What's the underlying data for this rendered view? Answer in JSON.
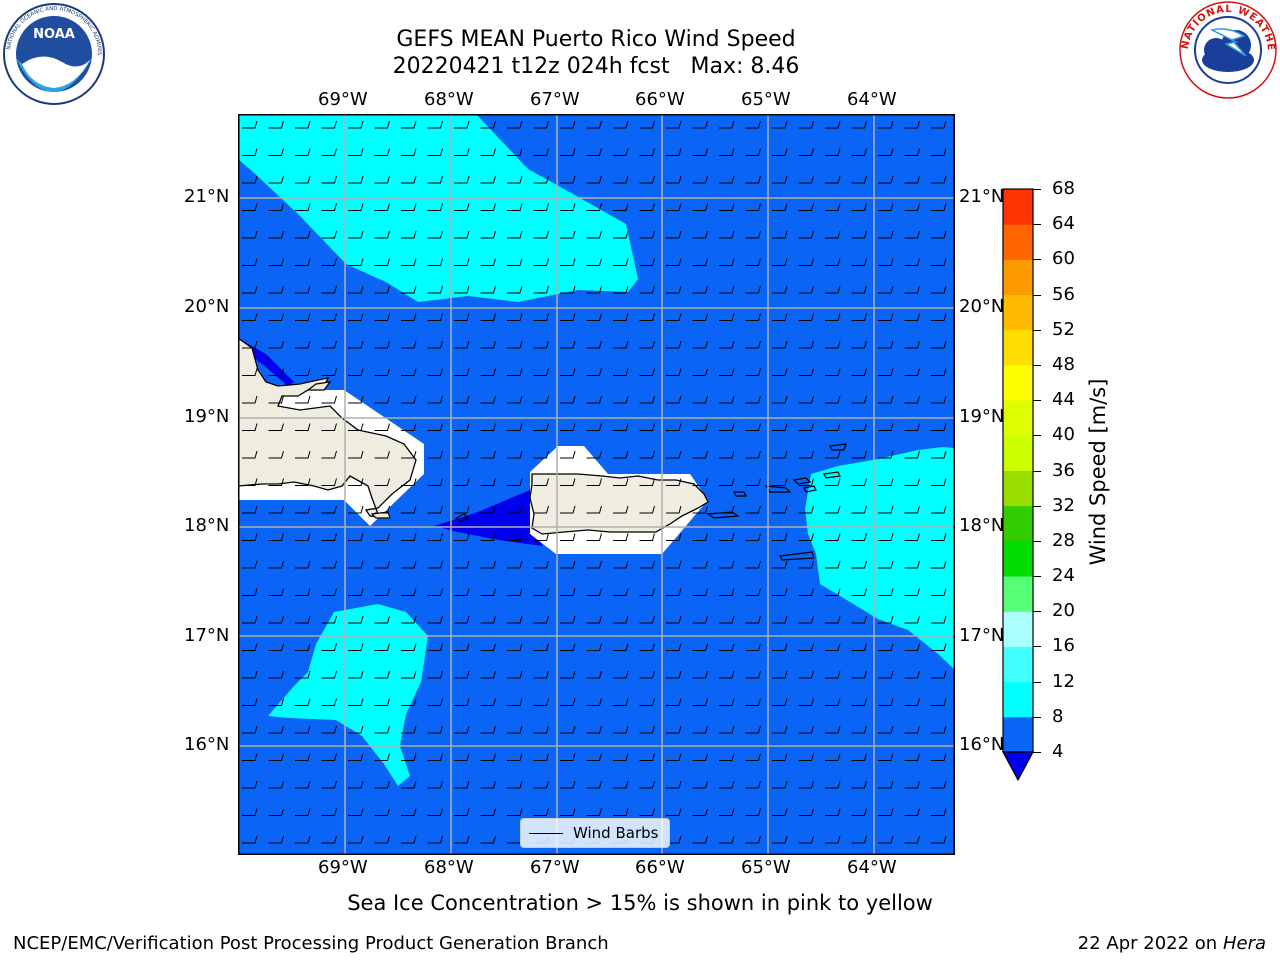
{
  "header": {
    "title_line1": "GEFS MEAN Puerto Rico Wind Speed",
    "title_line2": "20220421 t12z 024h fcst   Max: 8.46"
  },
  "logos": {
    "left": {
      "text": "NOAA",
      "ring_text": "NATIONAL OCEANIC AND ATMOSPHERIC ADMINISTRATION · U.S. DEPARTMENT OF COMMERCE"
    },
    "right": {
      "ring_text": "NATIONAL WEATHER SERVICE"
    }
  },
  "map": {
    "lon_labels": [
      "69°W",
      "68°W",
      "67°W",
      "66°W",
      "65°W",
      "64°W"
    ],
    "lat_labels": [
      "21°N",
      "20°N",
      "19°N",
      "18°N",
      "17°N",
      "16°N"
    ],
    "legend_label": "Wind Barbs"
  },
  "colorbar": {
    "label": "Wind Speed [m/s]",
    "ticks": [
      "68",
      "64",
      "60",
      "56",
      "52",
      "48",
      "44",
      "40",
      "36",
      "32",
      "28",
      "24",
      "20",
      "16",
      "12",
      "8",
      "4"
    ],
    "colors_low_to_high": [
      "#0a64f5",
      "#00ffff",
      "#44ffff",
      "#aaffff",
      "#55ff77",
      "#00dd00",
      "#33cc00",
      "#99dd00",
      "#ccff00",
      "#ddff00",
      "#ffff00",
      "#ffdd00",
      "#ffbb00",
      "#ff9900",
      "#ff6600",
      "#ff3300",
      "#ff0000"
    ],
    "under_color": "#0000ee"
  },
  "footer": {
    "caption": "Sea Ice Concentration > 15% is shown in pink to yellow",
    "left": "NCEP/EMC/Verification Post Processing Product Generation Branch",
    "date": "22 Apr 2022 on ",
    "host": "Hera"
  }
}
